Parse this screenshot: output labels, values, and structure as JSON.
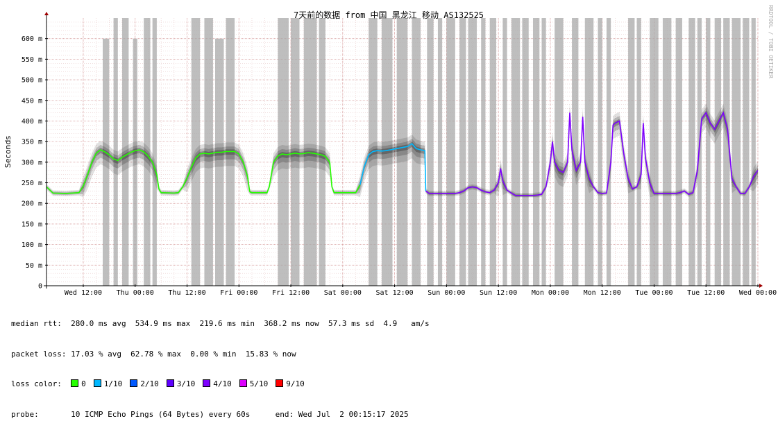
{
  "chart_data": {
    "type": "line",
    "title": "7天前的数据 from 中国 黑龙江 移动 AS132525",
    "ylabel": "Seconds",
    "watermark": "RRDTOOL / TOBI OETIKER",
    "ylim": [
      0,
      650
    ],
    "y_ticks": [
      {
        "value": 0,
        "label": "0"
      },
      {
        "value": 50,
        "label": "50 m"
      },
      {
        "value": 100,
        "label": "100 m"
      },
      {
        "value": 150,
        "label": "150 m"
      },
      {
        "value": 200,
        "label": "200 m"
      },
      {
        "value": 250,
        "label": "250 m"
      },
      {
        "value": 300,
        "label": "300 m"
      },
      {
        "value": 350,
        "label": "350 m"
      },
      {
        "value": 400,
        "label": "400 m"
      },
      {
        "value": 450,
        "label": "450 m"
      },
      {
        "value": 500,
        "label": "500 m"
      },
      {
        "value": 550,
        "label": "550 m"
      },
      {
        "value": 600,
        "label": "600 m"
      }
    ],
    "x_ticks": [
      "Wed 12:00",
      "Thu 00:00",
      "Thu 12:00",
      "Fri 00:00",
      "Fri 12:00",
      "Sat 00:00",
      "Sat 12:00",
      "Sun 00:00",
      "Sun 12:00",
      "Mon 00:00",
      "Mon 12:00",
      "Tue 00:00",
      "Tue 12:00",
      "Wed 00:00"
    ],
    "x_start_hour": -8.5,
    "x_end_hour": 156,
    "grid": true,
    "series_median_rtt": [
      [
        -8.5,
        240
      ],
      [
        -7,
        225
      ],
      [
        -4,
        224
      ],
      [
        -1,
        226
      ],
      [
        0,
        242
      ],
      [
        1,
        270
      ],
      [
        2,
        300
      ],
      [
        3,
        322
      ],
      [
        4,
        330
      ],
      [
        5,
        325
      ],
      [
        6,
        318
      ],
      [
        7,
        308
      ],
      [
        8,
        304
      ],
      [
        9,
        312
      ],
      [
        10,
        318
      ],
      [
        11,
        324
      ],
      [
        12,
        328
      ],
      [
        13,
        330
      ],
      [
        14,
        325
      ],
      [
        15,
        315
      ],
      [
        16,
        300
      ],
      [
        17,
        270
      ],
      [
        17.5,
        235
      ],
      [
        18,
        226
      ],
      [
        21,
        225
      ],
      [
        22,
        226
      ],
      [
        23,
        240
      ],
      [
        24,
        262
      ],
      [
        25,
        288
      ],
      [
        26,
        310
      ],
      [
        27,
        320
      ],
      [
        28,
        322
      ],
      [
        29,
        320
      ],
      [
        30,
        322
      ],
      [
        31,
        324
      ],
      [
        32,
        324
      ],
      [
        33,
        326
      ],
      [
        34,
        326
      ],
      [
        35,
        326
      ],
      [
        36,
        320
      ],
      [
        37,
        300
      ],
      [
        38,
        265
      ],
      [
        38.5,
        228
      ],
      [
        39,
        226
      ],
      [
        42.5,
        226
      ],
      [
        43,
        240
      ],
      [
        44,
        300
      ],
      [
        45,
        315
      ],
      [
        46,
        320
      ],
      [
        47,
        318
      ],
      [
        48,
        320
      ],
      [
        49,
        322
      ],
      [
        50,
        320
      ],
      [
        51,
        321
      ],
      [
        52,
        323
      ],
      [
        53,
        322
      ],
      [
        54,
        320
      ],
      [
        55,
        318
      ],
      [
        56,
        314
      ],
      [
        57,
        300
      ],
      [
        57.5,
        240
      ],
      [
        58,
        226
      ],
      [
        63,
        226
      ],
      [
        64,
        245
      ],
      [
        65,
        290
      ],
      [
        66,
        318
      ],
      [
        67,
        326
      ],
      [
        68,
        328
      ],
      [
        69,
        327
      ],
      [
        70,
        328
      ],
      [
        71,
        330
      ],
      [
        72,
        332
      ],
      [
        73,
        334
      ],
      [
        74,
        336
      ],
      [
        75,
        338
      ],
      [
        76,
        345
      ],
      [
        77,
        333
      ],
      [
        78,
        330
      ],
      [
        79,
        328
      ],
      [
        79.2,
        230
      ],
      [
        80,
        224
      ],
      [
        86,
        224
      ],
      [
        87,
        226
      ],
      [
        88,
        230
      ],
      [
        89,
        238
      ],
      [
        90,
        240
      ],
      [
        91,
        238
      ],
      [
        92,
        232
      ],
      [
        93,
        228
      ],
      [
        94,
        226
      ],
      [
        95,
        232
      ],
      [
        96,
        250
      ],
      [
        96.5,
        285
      ],
      [
        97,
        255
      ],
      [
        98,
        232
      ],
      [
        99,
        225
      ],
      [
        100,
        219
      ],
      [
        104,
        219
      ],
      [
        105,
        220
      ],
      [
        106,
        222
      ],
      [
        107,
        240
      ],
      [
        108,
        300
      ],
      [
        108.5,
        350
      ],
      [
        109,
        300
      ],
      [
        110,
        280
      ],
      [
        111,
        275
      ],
      [
        112,
        300
      ],
      [
        112.5,
        420
      ],
      [
        113,
        330
      ],
      [
        114,
        280
      ],
      [
        115,
        300
      ],
      [
        115.5,
        410
      ],
      [
        116,
        300
      ],
      [
        117,
        260
      ],
      [
        118,
        240
      ],
      [
        119,
        226
      ],
      [
        120,
        224
      ],
      [
        121,
        225
      ],
      [
        122,
        300
      ],
      [
        122.5,
        390
      ],
      [
        123,
        395
      ],
      [
        124,
        400
      ],
      [
        125,
        320
      ],
      [
        126,
        260
      ],
      [
        127,
        235
      ],
      [
        128,
        240
      ],
      [
        129,
        270
      ],
      [
        129.5,
        395
      ],
      [
        130,
        310
      ],
      [
        131,
        250
      ],
      [
        132,
        224
      ],
      [
        137,
        224
      ],
      [
        138,
        226
      ],
      [
        139,
        230
      ],
      [
        140,
        222
      ],
      [
        141,
        226
      ],
      [
        142,
        280
      ],
      [
        143,
        405
      ],
      [
        144,
        420
      ],
      [
        145,
        395
      ],
      [
        146,
        380
      ],
      [
        147,
        400
      ],
      [
        148,
        420
      ],
      [
        149,
        380
      ],
      [
        150,
        260
      ],
      [
        151,
        240
      ],
      [
        152,
        224
      ],
      [
        153,
        224
      ],
      [
        154,
        240
      ],
      [
        155,
        265
      ],
      [
        156,
        280
      ]
    ],
    "loss_color_segments": [
      {
        "from": -8.5,
        "to": 38.5,
        "color": "#26ff00"
      },
      {
        "from": 38.5,
        "to": 64,
        "color": "#26ff00"
      },
      {
        "from": 64,
        "to": 79.2,
        "color": "#00b8ff"
      },
      {
        "from": 79.2,
        "to": 156,
        "color": "#7e00ff"
      }
    ],
    "loss_bars": [
      {
        "from": 4.5,
        "to": 6,
        "value": 600
      },
      {
        "from": 7,
        "to": 8,
        "value": 650
      },
      {
        "from": 9,
        "to": 10.5,
        "value": 650
      },
      {
        "from": 11.5,
        "to": 12.5,
        "value": 600
      },
      {
        "from": 14,
        "to": 15.5,
        "value": 650
      },
      {
        "from": 16,
        "to": 17,
        "value": 650
      },
      {
        "from": 25,
        "to": 27,
        "value": 650
      },
      {
        "from": 28,
        "to": 30,
        "value": 650
      },
      {
        "from": 30.5,
        "to": 32.5,
        "value": 600
      },
      {
        "from": 33,
        "to": 35,
        "value": 650
      },
      {
        "from": 45,
        "to": 47.5,
        "value": 650
      },
      {
        "from": 48,
        "to": 50,
        "value": 650
      },
      {
        "from": 51,
        "to": 54,
        "value": 650
      },
      {
        "from": 54.5,
        "to": 56,
        "value": 650
      },
      {
        "from": 66,
        "to": 68,
        "value": 650
      },
      {
        "from": 69,
        "to": 71.5,
        "value": 650
      },
      {
        "from": 72.5,
        "to": 75,
        "value": 650
      },
      {
        "from": 76,
        "to": 78,
        "value": 650
      },
      {
        "from": 79.5,
        "to": 81,
        "value": 650
      },
      {
        "from": 82,
        "to": 83,
        "value": 650
      },
      {
        "from": 84,
        "to": 86,
        "value": 650
      },
      {
        "from": 87,
        "to": 88.5,
        "value": 650
      },
      {
        "from": 89,
        "to": 91,
        "value": 650
      },
      {
        "from": 92,
        "to": 93,
        "value": 650
      },
      {
        "from": 94,
        "to": 95.5,
        "value": 650
      },
      {
        "from": 97,
        "to": 98,
        "value": 650
      },
      {
        "from": 99,
        "to": 101,
        "value": 650
      },
      {
        "from": 101.5,
        "to": 103,
        "value": 650
      },
      {
        "from": 104,
        "to": 105.5,
        "value": 650
      },
      {
        "from": 106,
        "to": 107,
        "value": 650
      },
      {
        "from": 109,
        "to": 111,
        "value": 650
      },
      {
        "from": 113,
        "to": 114.5,
        "value": 650
      },
      {
        "from": 116,
        "to": 118,
        "value": 650
      },
      {
        "from": 119,
        "to": 120,
        "value": 650
      },
      {
        "from": 121,
        "to": 122,
        "value": 650
      },
      {
        "from": 126,
        "to": 127.5,
        "value": 650
      },
      {
        "from": 128,
        "to": 129,
        "value": 650
      },
      {
        "from": 131,
        "to": 133,
        "value": 650
      },
      {
        "from": 134,
        "to": 136,
        "value": 650
      },
      {
        "from": 137,
        "to": 138.5,
        "value": 650
      },
      {
        "from": 140,
        "to": 141.5,
        "value": 650
      },
      {
        "from": 142,
        "to": 143,
        "value": 650
      },
      {
        "from": 144,
        "to": 145,
        "value": 650
      },
      {
        "from": 146,
        "to": 147.5,
        "value": 650
      },
      {
        "from": 148,
        "to": 149.5,
        "value": 650
      },
      {
        "from": 150,
        "to": 152,
        "value": 650
      },
      {
        "from": 152.5,
        "to": 154,
        "value": 650
      },
      {
        "from": 154.5,
        "to": 155.5,
        "value": 650
      }
    ]
  },
  "stats": {
    "median_rtt": "median rtt:  280.0 ms avg  534.9 ms max  219.6 ms min  368.2 ms now  57.3 ms sd  4.9   am/s",
    "packet_loss": "packet loss: 17.03 % avg  62.78 % max  0.00 % min  15.83 % now",
    "loss_color_label": "loss color:",
    "loss_colors": [
      {
        "label": "0",
        "color": "#26ff00"
      },
      {
        "label": "1/10",
        "color": "#00b8ff"
      },
      {
        "label": "2/10",
        "color": "#0059ff"
      },
      {
        "label": "3/10",
        "color": "#5e00ff"
      },
      {
        "label": "4/10",
        "color": "#7e00ff"
      },
      {
        "label": "5/10",
        "color": "#dd00ff"
      },
      {
        "label": "9/10",
        "color": "#ff0000"
      }
    ],
    "probe": "probe:       10 ICMP Echo Pings (64 Bytes) every 60s",
    "end": "end: Wed Jul  2 00:15:17 2025"
  }
}
